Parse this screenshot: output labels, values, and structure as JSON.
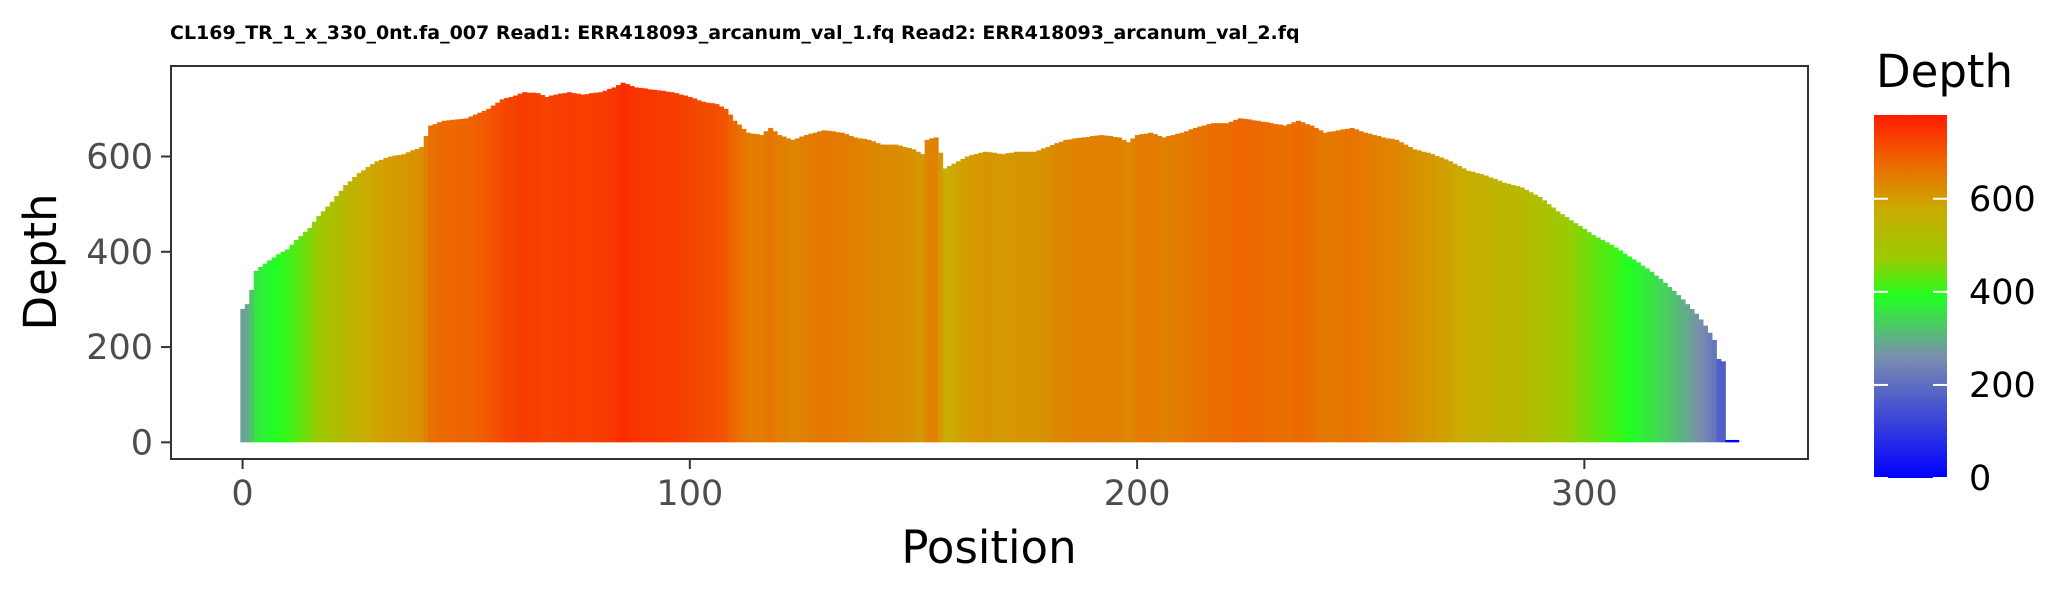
{
  "chart_data": {
    "type": "bar",
    "title": "CL169_TR_1_x_330_0nt.fa_007 Read1: ERR418093_arcanum_val_1.fq Read2: ERR418093_arcanum_val_2.fq",
    "xlabel": "Position",
    "ylabel": "Depth",
    "xlim": [
      -16,
      350
    ],
    "ylim": [
      -35,
      790
    ],
    "xticks": [
      0,
      100,
      200,
      300
    ],
    "yticks": [
      0,
      200,
      400,
      600
    ],
    "grid": false,
    "legend": {
      "title": "Depth",
      "placement": "right",
      "range": [
        0,
        780
      ],
      "ticks": [
        0,
        200,
        400,
        600
      ],
      "colors": [
        {
          "value": 0,
          "color": "#0000ff"
        },
        {
          "value": 260,
          "color": "#7a8fae"
        },
        {
          "value": 390,
          "color": "#22ff22"
        },
        {
          "value": 470,
          "color": "#99cc00"
        },
        {
          "value": 580,
          "color": "#ccaa00"
        },
        {
          "value": 680,
          "color": "#ee6600"
        },
        {
          "value": 780,
          "color": "#ff1a00"
        }
      ]
    },
    "profile": [
      [
        0,
        280
      ],
      [
        1,
        290
      ],
      [
        2,
        320
      ],
      [
        3,
        360
      ],
      [
        5,
        375
      ],
      [
        8,
        395
      ],
      [
        10,
        405
      ],
      [
        12,
        425
      ],
      [
        15,
        450
      ],
      [
        17,
        475
      ],
      [
        20,
        505
      ],
      [
        23,
        540
      ],
      [
        26,
        565
      ],
      [
        30,
        590
      ],
      [
        33,
        600
      ],
      [
        36,
        605
      ],
      [
        40,
        620
      ],
      [
        42,
        665
      ],
      [
        45,
        675
      ],
      [
        50,
        680
      ],
      [
        55,
        700
      ],
      [
        58,
        720
      ],
      [
        60,
        725
      ],
      [
        63,
        735
      ],
      [
        66,
        733
      ],
      [
        68,
        725
      ],
      [
        70,
        730
      ],
      [
        73,
        735
      ],
      [
        76,
        730
      ],
      [
        80,
        735
      ],
      [
        83,
        745
      ],
      [
        85,
        755
      ],
      [
        88,
        745
      ],
      [
        92,
        740
      ],
      [
        96,
        735
      ],
      [
        100,
        725
      ],
      [
        103,
        715
      ],
      [
        106,
        710
      ],
      [
        108,
        700
      ],
      [
        110,
        675
      ],
      [
        113,
        650
      ],
      [
        116,
        645
      ],
      [
        118,
        660
      ],
      [
        120,
        645
      ],
      [
        123,
        635
      ],
      [
        126,
        645
      ],
      [
        130,
        655
      ],
      [
        134,
        650
      ],
      [
        137,
        640
      ],
      [
        140,
        635
      ],
      [
        143,
        625
      ],
      [
        146,
        625
      ],
      [
        150,
        615
      ],
      [
        152,
        605
      ],
      [
        153,
        635
      ],
      [
        155,
        640
      ],
      [
        157,
        575
      ],
      [
        159,
        585
      ],
      [
        162,
        600
      ],
      [
        166,
        610
      ],
      [
        170,
        605
      ],
      [
        173,
        610
      ],
      [
        177,
        610
      ],
      [
        180,
        620
      ],
      [
        184,
        635
      ],
      [
        188,
        640
      ],
      [
        192,
        645
      ],
      [
        196,
        640
      ],
      [
        198,
        630
      ],
      [
        200,
        645
      ],
      [
        203,
        650
      ],
      [
        206,
        640
      ],
      [
        210,
        650
      ],
      [
        213,
        660
      ],
      [
        217,
        670
      ],
      [
        220,
        670
      ],
      [
        223,
        680
      ],
      [
        227,
        675
      ],
      [
        230,
        670
      ],
      [
        233,
        665
      ],
      [
        236,
        675
      ],
      [
        239,
        665
      ],
      [
        242,
        650
      ],
      [
        245,
        655
      ],
      [
        248,
        660
      ],
      [
        251,
        650
      ],
      [
        255,
        640
      ],
      [
        258,
        635
      ],
      [
        262,
        615
      ],
      [
        266,
        605
      ],
      [
        270,
        590
      ],
      [
        274,
        570
      ],
      [
        278,
        560
      ],
      [
        282,
        545
      ],
      [
        286,
        535
      ],
      [
        290,
        515
      ],
      [
        294,
        485
      ],
      [
        298,
        460
      ],
      [
        302,
        435
      ],
      [
        306,
        415
      ],
      [
        310,
        390
      ],
      [
        314,
        365
      ],
      [
        318,
        335
      ],
      [
        322,
        300
      ],
      [
        325,
        270
      ],
      [
        327,
        245
      ],
      [
        329,
        215
      ],
      [
        330,
        175
      ],
      [
        331,
        170
      ],
      [
        332,
        5
      ],
      [
        333,
        5
      ],
      [
        334,
        5
      ]
    ]
  }
}
